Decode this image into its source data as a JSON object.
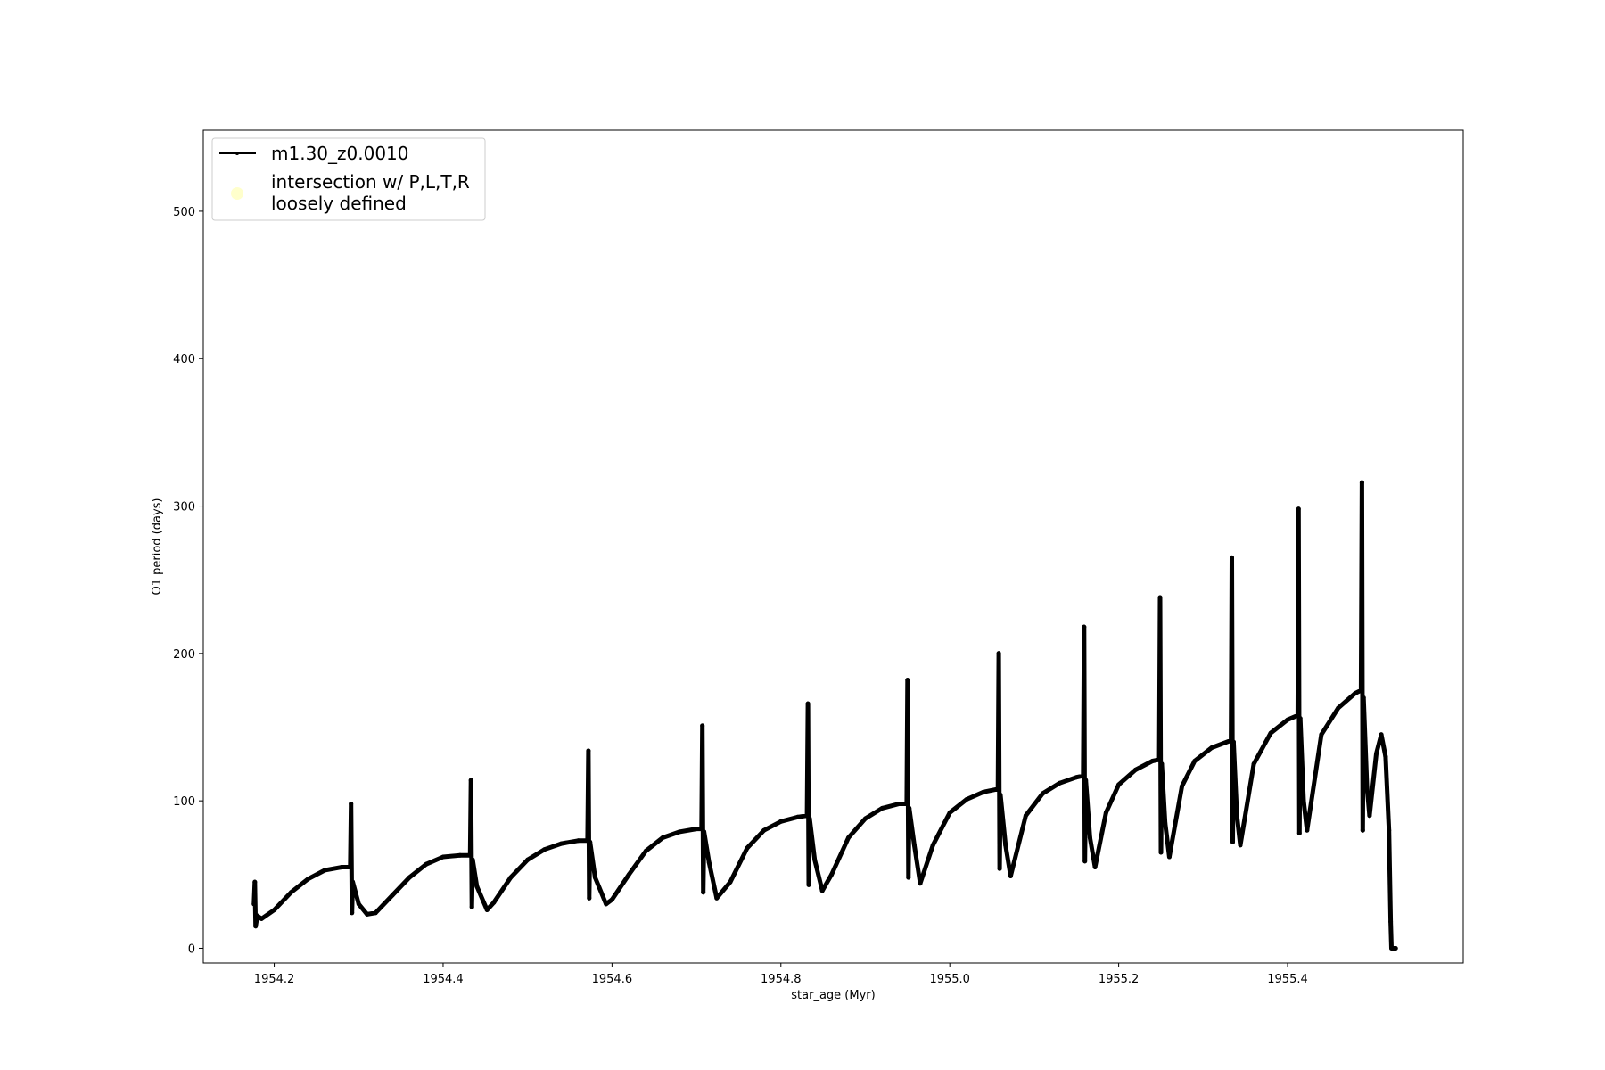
{
  "chart_data": {
    "type": "line",
    "title": "",
    "xlabel": "star_age (Myr)",
    "ylabel": "O1 period (days)",
    "xlim": [
      1954.116,
      1955.608
    ],
    "ylim": [
      -10,
      555
    ],
    "xticks": [
      1954.2,
      1954.4,
      1954.6,
      1954.8,
      1955.0,
      1955.2,
      1955.4
    ],
    "xtick_labels": [
      "1954.2",
      "1954.4",
      "1954.6",
      "1954.8",
      "1955.0",
      "1955.2",
      "1955.4"
    ],
    "yticks": [
      0,
      100,
      200,
      300,
      400,
      500
    ],
    "ytick_labels": [
      "0",
      "100",
      "200",
      "300",
      "400",
      "500"
    ],
    "grid": false,
    "legend_position": "top-left",
    "series": [
      {
        "name": "m1.30_z0.0010",
        "color": "#000000",
        "marker": "point",
        "x": [
          1954.176,
          1954.177,
          1954.178,
          1954.18,
          1954.185,
          1954.2,
          1954.22,
          1954.24,
          1954.26,
          1954.28,
          1954.29,
          1954.291,
          1954.292,
          1954.293,
          1954.3,
          1954.31,
          1954.32,
          1954.34,
          1954.36,
          1954.38,
          1954.4,
          1954.42,
          1954.432,
          1954.433,
          1954.434,
          1954.435,
          1954.44,
          1954.452,
          1954.46,
          1954.48,
          1954.5,
          1954.52,
          1954.54,
          1954.56,
          1954.571,
          1954.572,
          1954.573,
          1954.574,
          1954.58,
          1954.593,
          1954.6,
          1954.62,
          1954.64,
          1954.66,
          1954.68,
          1954.7,
          1954.706,
          1954.707,
          1954.708,
          1954.709,
          1954.715,
          1954.724,
          1954.74,
          1954.76,
          1954.78,
          1954.8,
          1954.82,
          1954.831,
          1954.832,
          1954.833,
          1954.834,
          1954.84,
          1954.849,
          1954.86,
          1954.88,
          1954.9,
          1954.92,
          1954.94,
          1954.949,
          1954.95,
          1954.951,
          1954.952,
          1954.958,
          1954.965,
          1954.98,
          1955.0,
          1955.02,
          1955.04,
          1955.057,
          1955.058,
          1955.059,
          1955.06,
          1955.066,
          1955.072,
          1955.09,
          1955.11,
          1955.13,
          1955.15,
          1955.158,
          1955.159,
          1955.16,
          1955.161,
          1955.166,
          1955.172,
          1955.185,
          1955.2,
          1955.22,
          1955.24,
          1955.248,
          1955.249,
          1955.25,
          1955.251,
          1955.255,
          1955.26,
          1955.275,
          1955.29,
          1955.31,
          1955.333,
          1955.334,
          1955.335,
          1955.336,
          1955.34,
          1955.344,
          1955.36,
          1955.38,
          1955.4,
          1955.412,
          1955.413,
          1955.414,
          1955.415,
          1955.419,
          1955.423,
          1955.44,
          1955.46,
          1955.48,
          1955.487,
          1955.488,
          1955.489,
          1955.49,
          1955.494,
          1955.497,
          1955.505,
          1955.511,
          1955.516,
          1955.52,
          1955.522,
          1955.523,
          1955.524,
          1955.528
        ],
        "y": [
          30,
          45,
          15,
          22,
          20,
          26,
          38,
          47,
          53,
          55,
          55,
          98,
          24,
          45,
          30,
          23,
          24,
          36,
          48,
          57,
          62,
          63,
          63,
          114,
          28,
          60,
          42,
          26,
          31,
          48,
          60,
          67,
          71,
          73,
          73,
          134,
          34,
          72,
          48,
          30,
          33,
          50,
          66,
          75,
          79,
          81,
          81,
          151,
          38,
          79,
          58,
          34,
          45,
          68,
          80,
          86,
          89,
          90,
          166,
          43,
          88,
          60,
          39,
          50,
          75,
          88,
          95,
          98,
          98,
          182,
          48,
          95,
          70,
          44,
          70,
          92,
          101,
          106,
          108,
          200,
          54,
          104,
          70,
          49,
          90,
          105,
          112,
          116,
          117,
          218,
          59,
          114,
          75,
          55,
          92,
          111,
          121,
          127,
          128,
          238,
          65,
          125,
          85,
          62,
          110,
          127,
          136,
          141,
          265,
          72,
          140,
          90,
          70,
          125,
          146,
          155,
          158,
          298,
          78,
          156,
          100,
          80,
          145,
          163,
          173,
          175,
          316,
          80,
          170,
          110,
          90,
          132,
          145,
          130,
          80,
          18,
          0,
          0,
          0
        ]
      },
      {
        "name": "intersection w/ P,L,T,R loosely defined",
        "color": "#ffffcc",
        "marker": "circle",
        "x": [],
        "y": []
      }
    ]
  }
}
